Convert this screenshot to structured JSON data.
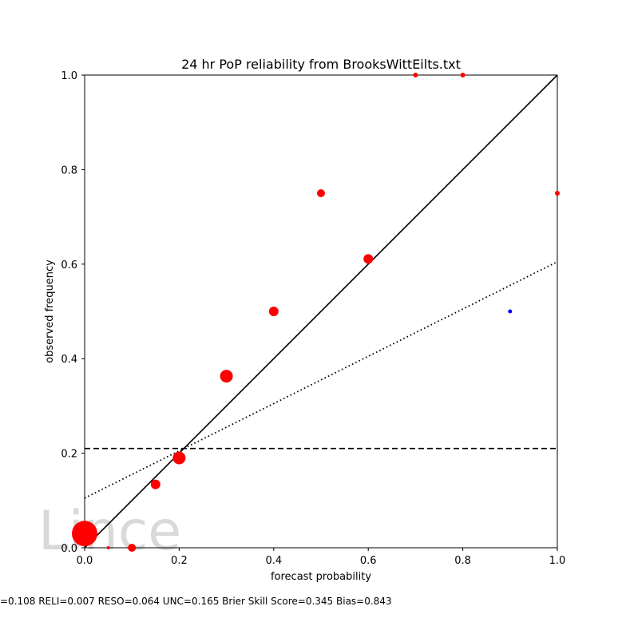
{
  "chart_data": {
    "type": "scatter",
    "title": "24 hr PoP reliability from BrooksWittEilts.txt",
    "xlabel": "forecast probability",
    "ylabel": "observed frequency",
    "xlim": [
      0,
      1
    ],
    "ylim": [
      0,
      1
    ],
    "x_ticks": [
      "0.0",
      "0.2",
      "0.4",
      "0.6",
      "0.8",
      "1.0"
    ],
    "y_ticks": [
      "0.0",
      "0.2",
      "0.4",
      "0.6",
      "0.8",
      "1.0"
    ],
    "grid": false,
    "series": [
      {
        "color": "#ff0000",
        "points": [
          {
            "x": 0.0,
            "y": 0.03,
            "r": 16
          },
          {
            "x": 0.05,
            "y": 0.0,
            "r": 2
          },
          {
            "x": 0.1,
            "y": 0.0,
            "r": 5
          },
          {
            "x": 0.15,
            "y": 0.134,
            "r": 6
          },
          {
            "x": 0.2,
            "y": 0.19,
            "r": 8
          },
          {
            "x": 0.3,
            "y": 0.363,
            "r": 8
          },
          {
            "x": 0.4,
            "y": 0.5,
            "r": 6
          },
          {
            "x": 0.5,
            "y": 0.75,
            "r": 5
          },
          {
            "x": 0.6,
            "y": 0.611,
            "r": 6
          },
          {
            "x": 0.7,
            "y": 1.0,
            "r": 3
          },
          {
            "x": 0.8,
            "y": 1.0,
            "r": 3
          },
          {
            "x": 1.0,
            "y": 0.75,
            "r": 3
          }
        ]
      },
      {
        "color": "#0000ff",
        "points": [
          {
            "x": 0.9,
            "y": 0.5,
            "r": 2.5
          }
        ]
      }
    ],
    "reference_lines": [
      {
        "kind": "diagonal",
        "style": "solid",
        "x": [
          0,
          1
        ],
        "y": [
          0,
          1
        ]
      },
      {
        "kind": "climatology",
        "style": "dashed",
        "x": [
          0,
          1
        ],
        "y": [
          0.21,
          0.21
        ]
      },
      {
        "kind": "fit",
        "style": "dotted",
        "x": [
          0,
          1
        ],
        "y": [
          0.105,
          0.605
        ]
      }
    ],
    "watermark": "Lince",
    "footer": "=0.108   RELI=0.007   RESO=0.064 UNC=0.165   Brier Skill Score=0.345   Bias=0.843"
  }
}
